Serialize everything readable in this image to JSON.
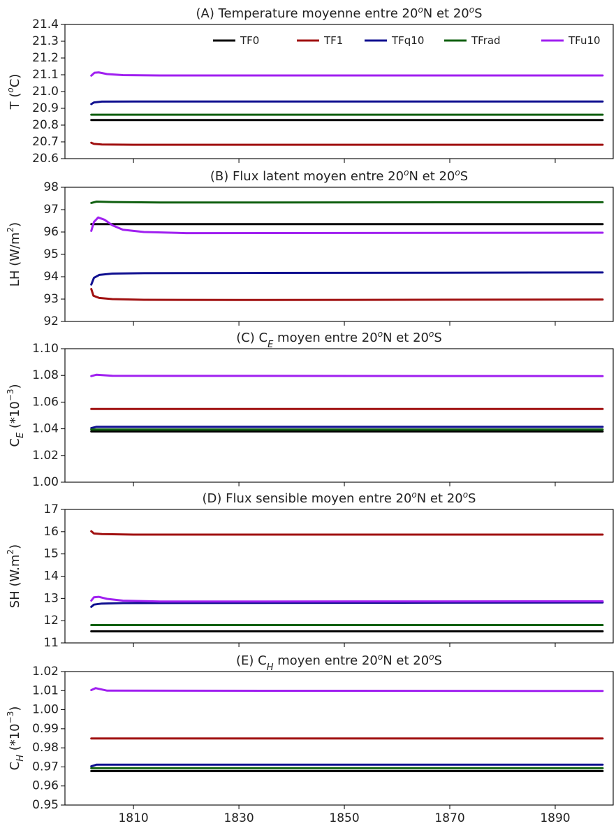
{
  "chart_data": [
    {
      "type": "line",
      "title": "(A) Temperature moyenne entre 20°N et 20°S",
      "ylabel": "T (°C)",
      "xlim": [
        1797,
        1901
      ],
      "ylim": [
        20.6,
        21.4
      ],
      "yticks": [
        "20.6",
        "20.7",
        "20.8",
        "20.9",
        "21.0",
        "21.1",
        "21.2",
        "21.3",
        "21.4"
      ],
      "xticks": [],
      "legend": {
        "placement": "top-right",
        "entries": [
          "TF0",
          "TF1",
          "TFq10",
          "TFrad",
          "TFu10"
        ]
      },
      "series": [
        {
          "name": "TF0",
          "color": "#000000",
          "x": [
            1802,
            1899
          ],
          "y": [
            20.83,
            20.83
          ]
        },
        {
          "name": "TF1",
          "color": "#a01010",
          "x": [
            1802,
            1802.5,
            1804,
            1810,
            1899
          ],
          "y": [
            20.695,
            20.688,
            20.684,
            20.683,
            20.683
          ]
        },
        {
          "name": "TFq10",
          "color": "#101090",
          "x": [
            1802,
            1802.5,
            1804,
            1810,
            1899
          ],
          "y": [
            20.925,
            20.935,
            20.94,
            20.941,
            20.941
          ]
        },
        {
          "name": "TFrad",
          "color": "#106010",
          "x": [
            1802,
            1899
          ],
          "y": [
            20.862,
            20.862
          ]
        },
        {
          "name": "TFu10",
          "color": "#a020f0",
          "x": [
            1802,
            1802.6,
            1803.4,
            1805,
            1808,
            1815,
            1899
          ],
          "y": [
            21.095,
            21.112,
            21.114,
            21.104,
            21.098,
            21.096,
            21.096
          ]
        }
      ]
    },
    {
      "type": "line",
      "title": "(B) Flux latent moyen entre 20°N et 20°S",
      "ylabel": "LH (W/m²)",
      "xlim": [
        1797,
        1901
      ],
      "ylim": [
        92,
        98
      ],
      "yticks": [
        "92",
        "93",
        "94",
        "95",
        "96",
        "97",
        "98"
      ],
      "xticks": [],
      "series": [
        {
          "name": "TF0",
          "color": "#000000",
          "x": [
            1802,
            1899
          ],
          "y": [
            96.35,
            96.35
          ]
        },
        {
          "name": "TF1",
          "color": "#a01010",
          "x": [
            1802,
            1802.4,
            1803.5,
            1806,
            1812,
            1830,
            1899
          ],
          "y": [
            93.45,
            93.15,
            93.05,
            93.0,
            92.97,
            92.96,
            92.98
          ]
        },
        {
          "name": "TFq10",
          "color": "#101090",
          "x": [
            1802,
            1802.5,
            1803.5,
            1806,
            1812,
            1830,
            1899
          ],
          "y": [
            93.65,
            93.95,
            94.08,
            94.14,
            94.16,
            94.17,
            94.19
          ]
        },
        {
          "name": "TFrad",
          "color": "#106010",
          "x": [
            1802,
            1803,
            1806,
            1815,
            1899
          ],
          "y": [
            97.3,
            97.36,
            97.34,
            97.32,
            97.33
          ]
        },
        {
          "name": "TFu10",
          "color": "#a020f0",
          "x": [
            1802,
            1802.5,
            1803.3,
            1804.5,
            1806,
            1808,
            1812,
            1820,
            1899
          ],
          "y": [
            96.05,
            96.45,
            96.65,
            96.55,
            96.3,
            96.1,
            96.0,
            95.95,
            95.97
          ]
        }
      ]
    },
    {
      "type": "line",
      "title": "(C) C_E moyen entre 20°N et 20°S",
      "ylabel": "C_E (*10⁻³)",
      "xlim": [
        1797,
        1901
      ],
      "ylim": [
        1.0,
        1.1
      ],
      "yticks": [
        "1.00",
        "1.02",
        "1.04",
        "1.06",
        "1.08",
        "1.10"
      ],
      "xticks": [],
      "series": [
        {
          "name": "TF0",
          "color": "#000000",
          "x": [
            1802,
            1899
          ],
          "y": [
            1.038,
            1.038
          ]
        },
        {
          "name": "TF1",
          "color": "#a01010",
          "x": [
            1802,
            1899
          ],
          "y": [
            1.0548,
            1.0548
          ]
        },
        {
          "name": "TFq10",
          "color": "#101090",
          "x": [
            1802,
            1803,
            1899
          ],
          "y": [
            1.0405,
            1.0415,
            1.0415
          ]
        },
        {
          "name": "TFrad",
          "color": "#106010",
          "x": [
            1802,
            1899
          ],
          "y": [
            1.0395,
            1.0395
          ]
        },
        {
          "name": "TFu10",
          "color": "#a020f0",
          "x": [
            1802,
            1803,
            1806,
            1899
          ],
          "y": [
            1.0795,
            1.0805,
            1.0797,
            1.0795
          ]
        }
      ]
    },
    {
      "type": "line",
      "title": "(D) Flux sensible moyen entre 20°N et 20°S",
      "ylabel": "SH (W.m²)",
      "xlim": [
        1797,
        1901
      ],
      "ylim": [
        11,
        17
      ],
      "yticks": [
        "11",
        "12",
        "13",
        "14",
        "15",
        "16",
        "17"
      ],
      "xticks": [],
      "series": [
        {
          "name": "TF0",
          "color": "#000000",
          "x": [
            1802,
            1899
          ],
          "y": [
            11.52,
            11.52
          ]
        },
        {
          "name": "TF1",
          "color": "#a01010",
          "x": [
            1802,
            1802.5,
            1804,
            1810,
            1899
          ],
          "y": [
            16.02,
            15.92,
            15.89,
            15.87,
            15.87
          ]
        },
        {
          "name": "TFq10",
          "color": "#101090",
          "x": [
            1802,
            1802.5,
            1804,
            1808,
            1899
          ],
          "y": [
            12.62,
            12.72,
            12.77,
            12.79,
            12.82
          ]
        },
        {
          "name": "TFrad",
          "color": "#106010",
          "x": [
            1802,
            1899
          ],
          "y": [
            11.8,
            11.8
          ]
        },
        {
          "name": "TFu10",
          "color": "#a020f0",
          "x": [
            1802,
            1802.5,
            1803.4,
            1805,
            1808,
            1815,
            1899
          ],
          "y": [
            12.9,
            13.05,
            13.07,
            12.98,
            12.9,
            12.86,
            12.87
          ]
        }
      ]
    },
    {
      "type": "line",
      "title": "(E) C_H moyen entre 20°N et 20°S",
      "ylabel": "C_H (*10⁻³)",
      "xlim": [
        1797,
        1901
      ],
      "ylim": [
        0.95,
        1.02
      ],
      "yticks": [
        "0.95",
        "0.96",
        "0.97",
        "0.98",
        "0.99",
        "1.00",
        "1.01",
        "1.02"
      ],
      "xticks": [
        "1810",
        "1830",
        "1850",
        "1870",
        "1890"
      ],
      "series": [
        {
          "name": "TF0",
          "color": "#000000",
          "x": [
            1802,
            1899
          ],
          "y": [
            0.9678,
            0.9678
          ]
        },
        {
          "name": "TF1",
          "color": "#a01010",
          "x": [
            1802,
            1899
          ],
          "y": [
            0.9849,
            0.9849
          ]
        },
        {
          "name": "TFq10",
          "color": "#101090",
          "x": [
            1802,
            1803,
            1899
          ],
          "y": [
            0.9703,
            0.9712,
            0.9712
          ]
        },
        {
          "name": "TFrad",
          "color": "#106010",
          "x": [
            1802,
            1899
          ],
          "y": [
            0.9693,
            0.9693
          ]
        },
        {
          "name": "TFu10",
          "color": "#a020f0",
          "x": [
            1802,
            1802.8,
            1805,
            1899
          ],
          "y": [
            1.0103,
            1.0113,
            1.01,
            1.0098
          ]
        }
      ]
    }
  ]
}
